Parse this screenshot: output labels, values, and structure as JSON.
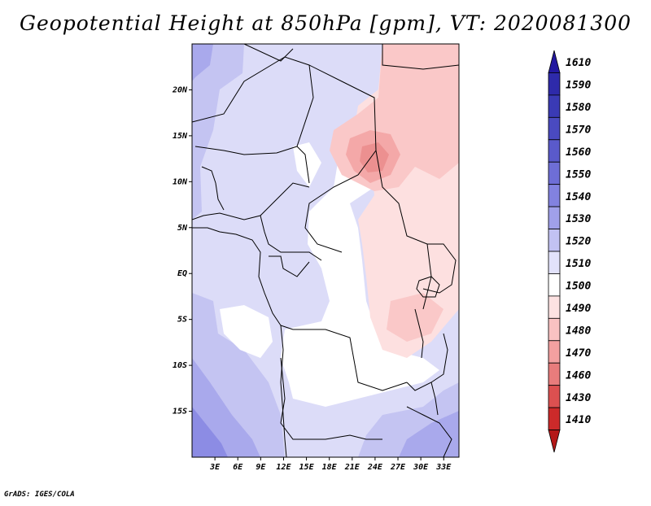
{
  "title": "Geopotential Height at 850hPa [gpm], VT: 2020081300",
  "footer": "GrADS: IGES/COLA",
  "map": {
    "lat_labels": [
      "20N",
      "15N",
      "10N",
      "5N",
      "EQ",
      "5S",
      "10S",
      "15S"
    ],
    "lat_values": [
      20,
      15,
      10,
      5,
      0,
      -5,
      -10,
      -15
    ],
    "lon_labels": [
      "3E",
      "6E",
      "9E",
      "12E",
      "15E",
      "18E",
      "21E",
      "24E",
      "27E",
      "30E",
      "33E"
    ],
    "lon_values": [
      3,
      6,
      9,
      12,
      15,
      18,
      21,
      24,
      27,
      30,
      33
    ],
    "lon_range": [
      0,
      35
    ],
    "lat_range": [
      -20,
      25
    ]
  },
  "colorbar": {
    "levels": [
      "1610",
      "1590",
      "1580",
      "1570",
      "1560",
      "1550",
      "1540",
      "1530",
      "1520",
      "1510",
      "1500",
      "1490",
      "1480",
      "1470",
      "1460",
      "1430",
      "1410"
    ],
    "colors": [
      "#2318a0",
      "#2e2aaa",
      "#3a3ab5",
      "#4a4ac0",
      "#5a5acb",
      "#6e6ed6",
      "#8282e0",
      "#a0a0ea",
      "#c2c2f3",
      "#e2e2fb",
      "#ffffff",
      "#fde2e2",
      "#f9c2c2",
      "#f3a0a0",
      "#e87c7c",
      "#dc5050",
      "#cc2a2a",
      "#b41818"
    ]
  }
}
